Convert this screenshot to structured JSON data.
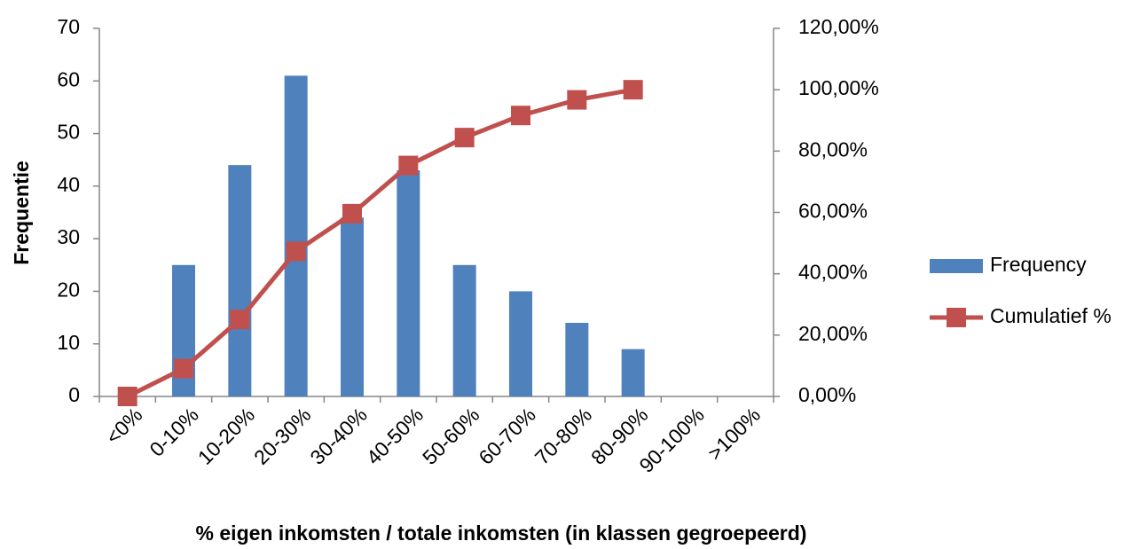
{
  "chart_data": {
    "type": "bar",
    "categories": [
      "<0%",
      "0-10%",
      "10-20%",
      "20-30%",
      "30-40%",
      "40-50%",
      "50-60%",
      "60-70%",
      "70-80%",
      "80-90%",
      "90-100%",
      ">100%"
    ],
    "xlabel": "% eigen inkomsten / totale inkomsten (in klassen gegroepeerd)",
    "ylabel": "Frequentie",
    "series": [
      {
        "name": "Frequency",
        "type": "bar",
        "color": "#4f81bd",
        "values": [
          0,
          25,
          44,
          61,
          34,
          43,
          25,
          20,
          14,
          9,
          0,
          0
        ]
      },
      {
        "name": "Cumulatief %",
        "type": "line",
        "axis": "y2",
        "color": "#c0504d",
        "values": [
          0,
          9.1,
          25.1,
          47.3,
          59.6,
          75.3,
          84.4,
          91.6,
          96.7,
          100,
          null,
          null
        ]
      }
    ],
    "ylim": [
      0,
      70
    ],
    "yticks": [
      0,
      10,
      20,
      30,
      40,
      50,
      60,
      70
    ],
    "y2lim": [
      0,
      120
    ],
    "y2ticks": [
      {
        "value": 0,
        "label": "0,00%"
      },
      {
        "value": 20,
        "label": "20,00%"
      },
      {
        "value": 40,
        "label": "40,00%"
      },
      {
        "value": 60,
        "label": "60,00%"
      },
      {
        "value": 80,
        "label": "80,00%"
      },
      {
        "value": 100,
        "label": "100,00%"
      },
      {
        "value": 120,
        "label": "120,00%"
      }
    ],
    "legend": "right"
  }
}
